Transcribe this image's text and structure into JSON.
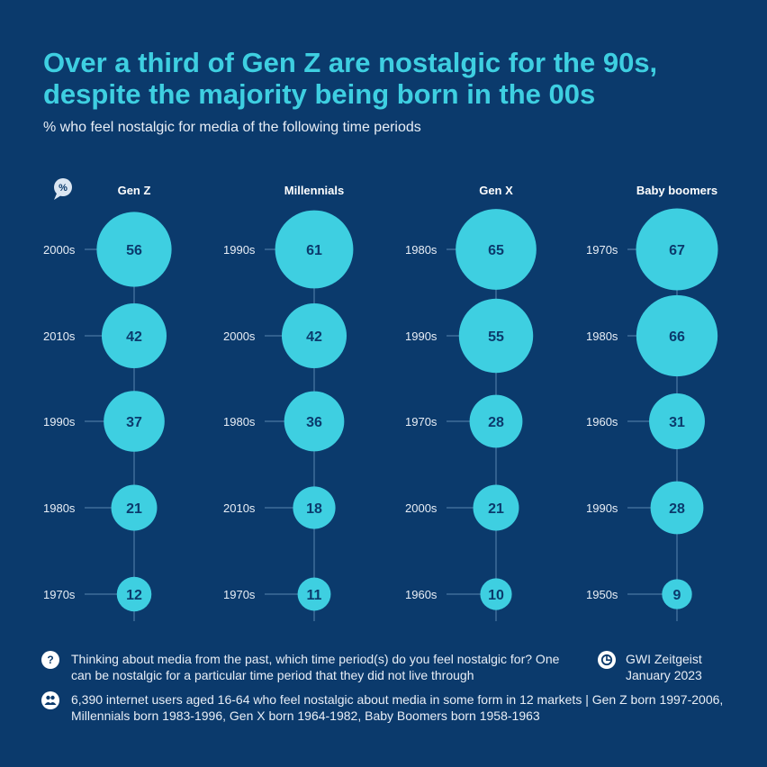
{
  "title": "Over a third of Gen Z are nostalgic for the 90s, despite the majority being born in the 00s",
  "subtitle": "% who feel nostalgic for media of the following time periods",
  "unit_badge": "%",
  "colors": {
    "background": "#0b3a6c",
    "bubble": "#3ecfe1",
    "bubble_text": "#0b3a6c",
    "title": "#3ecfe1",
    "line": "#3f6d99"
  },
  "chart_data": {
    "type": "bubble",
    "value_unit": "%",
    "groups": [
      {
        "name": "Gen Z",
        "items": [
          {
            "period": "2000s",
            "value": 56
          },
          {
            "period": "2010s",
            "value": 42
          },
          {
            "period": "1990s",
            "value": 37
          },
          {
            "period": "1980s",
            "value": 21
          },
          {
            "period": "1970s",
            "value": 12
          }
        ]
      },
      {
        "name": "Millennials",
        "items": [
          {
            "period": "1990s",
            "value": 61
          },
          {
            "period": "2000s",
            "value": 42
          },
          {
            "period": "1980s",
            "value": 36
          },
          {
            "period": "2010s",
            "value": 18
          },
          {
            "period": "1970s",
            "value": 11
          }
        ]
      },
      {
        "name": "Gen X",
        "items": [
          {
            "period": "1980s",
            "value": 65
          },
          {
            "period": "1990s",
            "value": 55
          },
          {
            "period": "1970s",
            "value": 28
          },
          {
            "period": "2000s",
            "value": 21
          },
          {
            "period": "1960s",
            "value": 10
          }
        ]
      },
      {
        "name": "Baby boomers",
        "items": [
          {
            "period": "1970s",
            "value": 67
          },
          {
            "period": "1980s",
            "value": 66
          },
          {
            "period": "1960s",
            "value": 31
          },
          {
            "period": "1990s",
            "value": 28
          },
          {
            "period": "1950s",
            "value": 9
          }
        ]
      }
    ]
  },
  "footer": {
    "question_icon": "?",
    "question": "Thinking about media from the past, which time period(s) do you feel nostalgic for? One can be nostalgic for a particular time period that they did not live through",
    "sample_icon": "people-icon",
    "sample": "6,390 internet users aged 16-64 who feel nostalgic about media in some form in 12 markets | Gen Z born 1997-2006, Millennials born 1983-1996, Gen X born 1964-1982, Baby Boomers born 1958-1963",
    "source_icon": "gwi-logo-icon",
    "source_line1": "GWI Zeitgeist",
    "source_line2": "January 2023"
  }
}
